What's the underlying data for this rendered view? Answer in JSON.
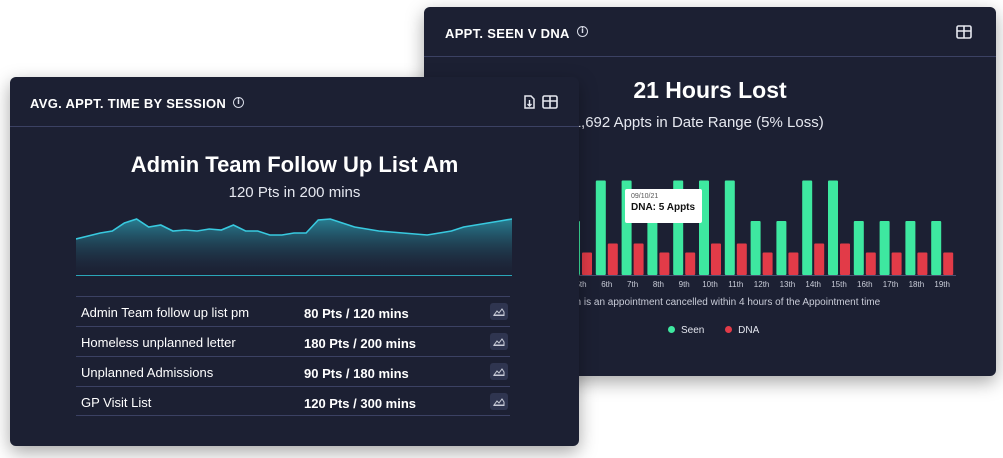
{
  "back_card": {
    "title": "APPT. SEEN V DNA",
    "headline": "21 Hours Lost",
    "subline": "'s from 1,692 Appts in Date Range (5% Loss)",
    "footnote": "on is an appointment cancelled within 4 hours of the Appointment time",
    "tooltip": {
      "date": "09/10/21",
      "value": "DNA: 5 Appts"
    },
    "legend": [
      {
        "label": "Seen",
        "color": "#3ee8a0"
      },
      {
        "label": "DNA",
        "color": "#e23b48"
      }
    ],
    "icons": {
      "info": "info-icon",
      "table": "table-icon"
    },
    "chart_data": {
      "type": "bar",
      "categories": [
        "5th",
        "6th",
        "7th",
        "8th",
        "9th",
        "10th",
        "11th",
        "12th",
        "13th",
        "14th",
        "15th",
        "16th",
        "17th",
        "18th",
        "19th"
      ],
      "series": [
        {
          "name": "Seen",
          "values": [
            12,
            21,
            21,
            12,
            21,
            21,
            21,
            12,
            12,
            21,
            21,
            12,
            12,
            12,
            12
          ]
        },
        {
          "name": "DNA",
          "values": [
            5,
            7,
            7,
            5,
            5,
            7,
            7,
            5,
            5,
            7,
            7,
            5,
            5,
            5,
            5
          ]
        }
      ],
      "xlabel": "",
      "ylabel": "",
      "ylim": [
        0,
        24
      ],
      "grid": false,
      "legend": "bottom"
    }
  },
  "front_card": {
    "title": "AVG. APPT. TIME BY SESSION",
    "headline": "Admin Team Follow Up List Am",
    "subline": "120 Pts in 200 mins",
    "icons": {
      "info": "info-icon",
      "export": "export-icon",
      "table": "table-icon",
      "row_action": "area-chart-icon"
    },
    "rows": [
      {
        "label": "Admin Team follow up list pm",
        "value": "80 Pts / 120 mins"
      },
      {
        "label": "Homeless unplanned letter",
        "value": "180 Pts / 200 mins"
      },
      {
        "label": "Unplanned Admissions",
        "value": "90 Pts / 180 mins"
      },
      {
        "label": "GP Visit List",
        "value": "120 Pts / 300 mins"
      }
    ],
    "chart_data": {
      "type": "area",
      "x": [
        0,
        1,
        2,
        3,
        4,
        5,
        6,
        7,
        8,
        9,
        10,
        11,
        12,
        13,
        14,
        15,
        16,
        17,
        18,
        19,
        20,
        21,
        22,
        23,
        24,
        25,
        26,
        27,
        28,
        29,
        30,
        31,
        32,
        33,
        34,
        35,
        36
      ],
      "y": [
        36,
        39,
        42,
        44,
        52,
        56,
        48,
        50,
        44,
        45,
        44,
        46,
        45,
        50,
        44,
        44,
        40,
        40,
        42,
        42,
        55,
        56,
        52,
        48,
        46,
        44,
        43,
        42,
        41,
        40,
        42,
        44,
        48,
        50,
        52,
        54,
        56
      ],
      "ylim": [
        0,
        70
      ],
      "grid": false,
      "line_color": "#38c9df"
    }
  }
}
